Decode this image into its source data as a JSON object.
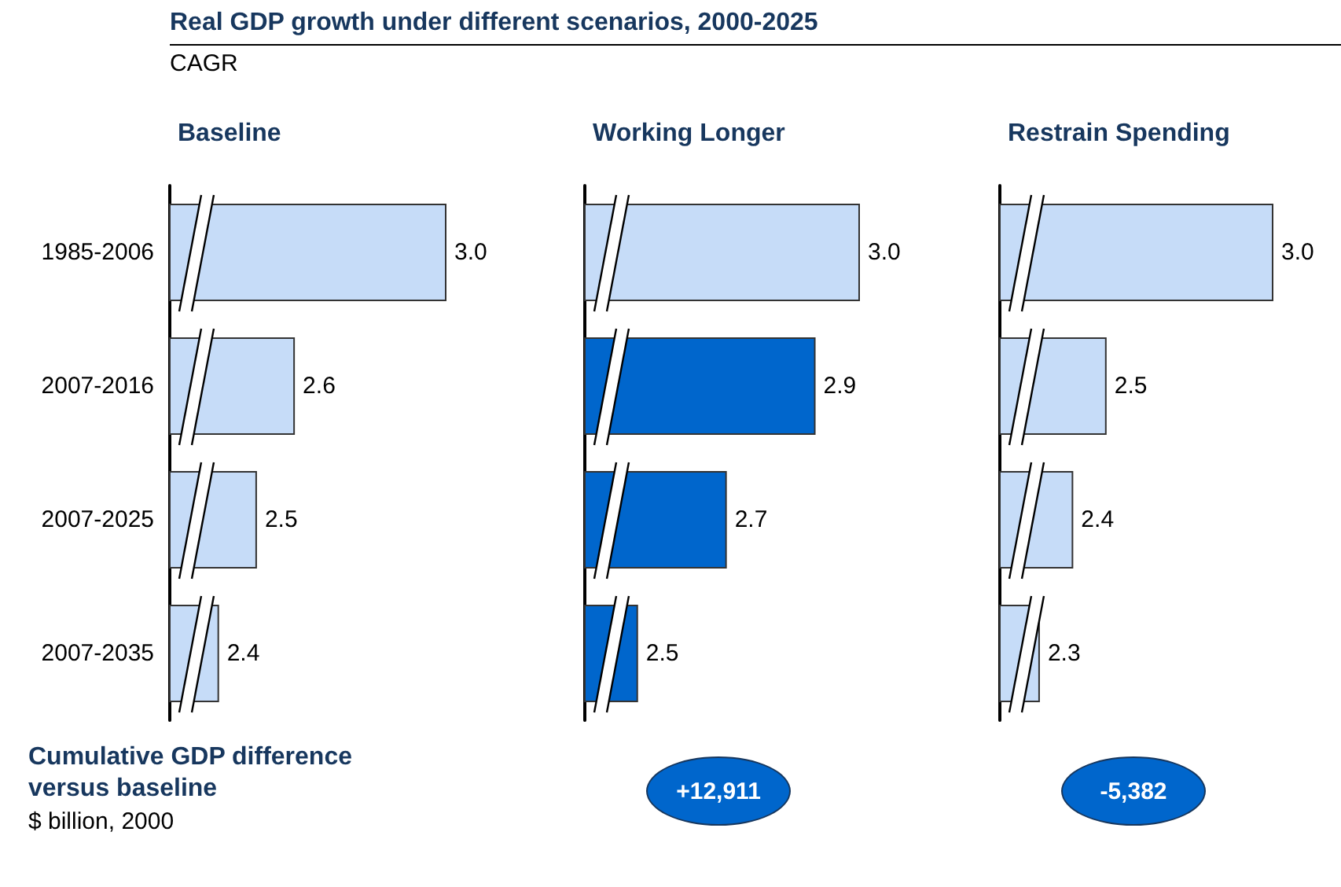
{
  "chart_data": [
    {
      "type": "other",
      "title": "Real GDP growth under different scenarios, 2000-2025",
      "subtitle": "CAGR"
    },
    {
      "type": "bar",
      "orientation": "horizontal",
      "title": "Baseline",
      "categories": [
        "1985-2006",
        "2007-2016",
        "2007-2025",
        "2007-2035"
      ],
      "values": [
        3.0,
        2.6,
        2.5,
        2.4
      ],
      "value_labels": [
        "3.0",
        "2.6",
        "2.5",
        "2.4"
      ],
      "color": "#c6dcf8",
      "xlim": [
        2.27,
        3.0
      ],
      "tick_labels": "y"
    },
    {
      "type": "bar",
      "orientation": "horizontal",
      "title": "Working Longer",
      "categories": [
        null,
        null,
        null,
        null
      ],
      "values": [
        3.0,
        2.9,
        2.7,
        2.5
      ],
      "value_labels": [
        "3.0",
        "2.9",
        "2.7",
        "2.5"
      ],
      "colors": [
        "#c6dcf8",
        "#0066cc",
        "#0066cc",
        "#0066cc"
      ],
      "xlim": [
        2.38,
        3.0
      ],
      "tick_labels": false
    },
    {
      "type": "bar",
      "orientation": "horizontal",
      "title": "Restrain Spending",
      "categories": [
        null,
        null,
        null,
        null
      ],
      "values": [
        3.0,
        2.5,
        2.4,
        2.3
      ],
      "value_labels": [
        "3.0",
        "2.5",
        "2.4",
        "2.3"
      ],
      "color": "#c6dcf8",
      "xlim": [
        2.18,
        3.0
      ],
      "tick_labels": false
    },
    {
      "type": "other",
      "title": "Cumulative GDP difference versus baseline",
      "subtitle": "$ billion, 2000",
      "annotations": [
        "+12,911",
        "-5,382"
      ]
    }
  ]
}
